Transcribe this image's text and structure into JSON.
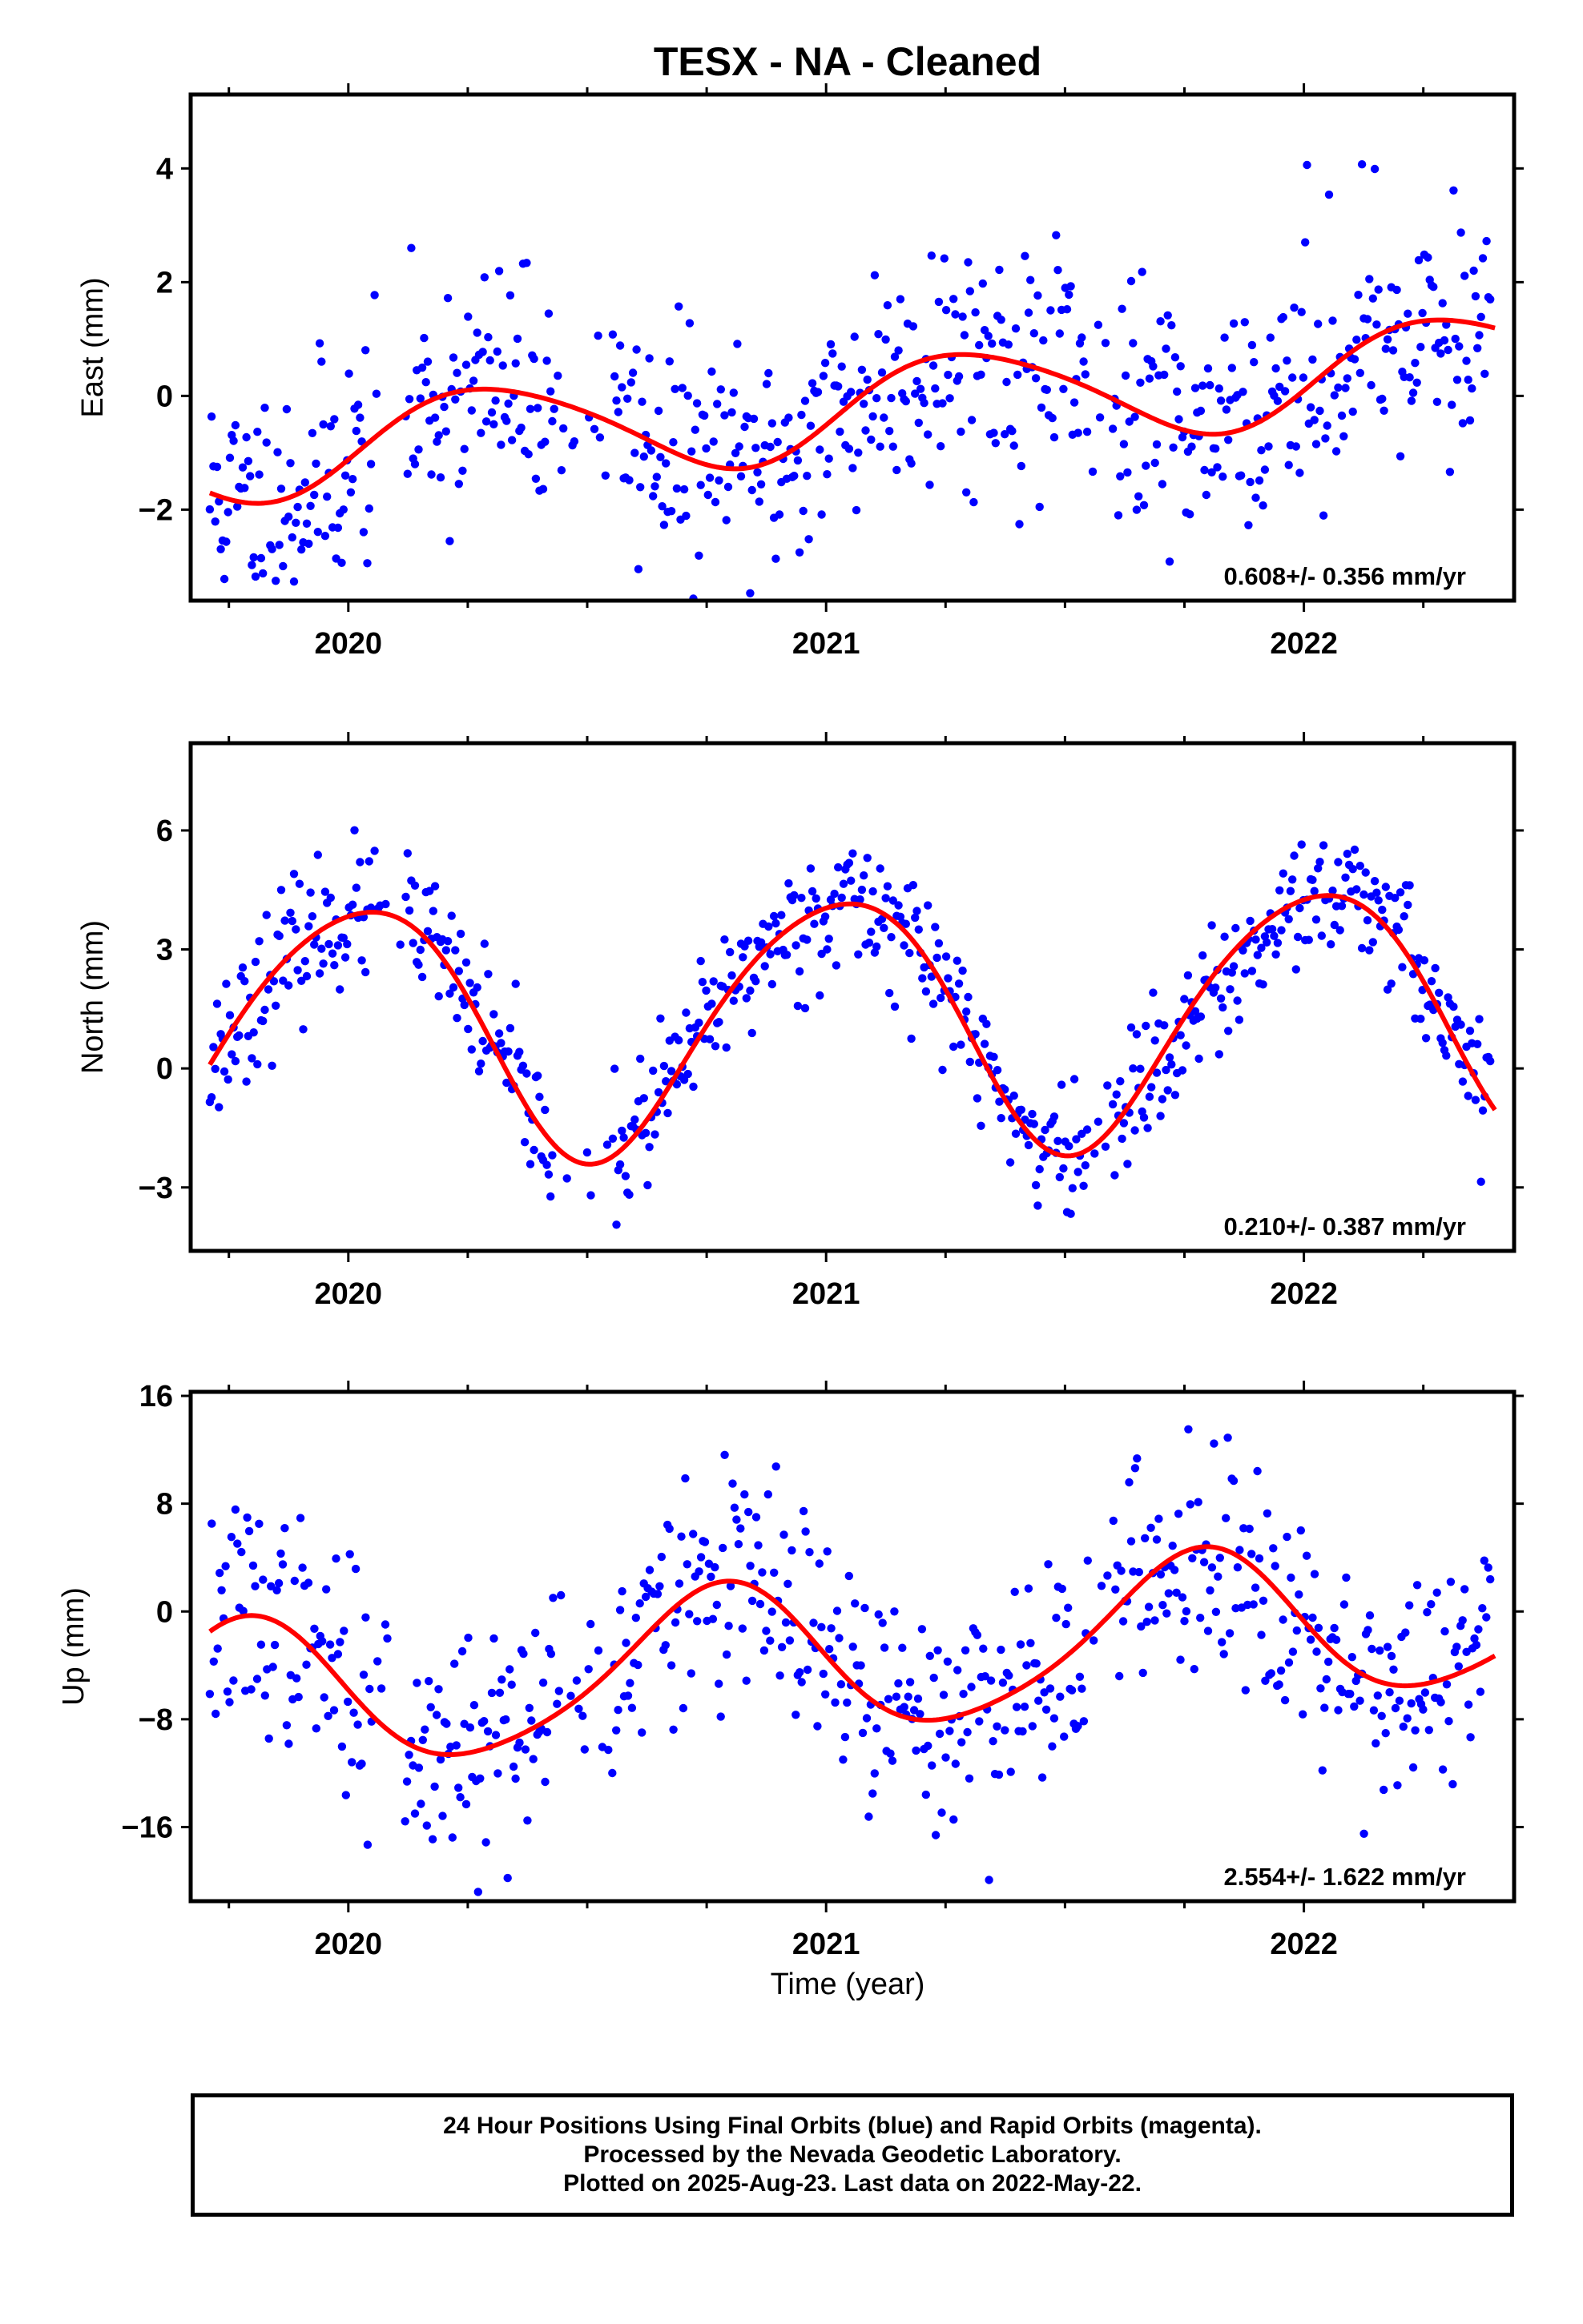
{
  "title": "TESX  - NA - Cleaned",
  "xlabel": "Time (year)",
  "footer": {
    "line1": "24 Hour Positions Using Final Orbits (blue) and Rapid Orbits (magenta).",
    "line2": "Processed by the Nevada Geodetic Laboratory.",
    "line3": "Plotted on 2025-Aug-23. Last data on 2022-May-22."
  },
  "colors": {
    "final_orbits": "#0000ff",
    "model_fit": "#ff0000",
    "axes": "#000000"
  },
  "chart_data": [
    {
      "type": "scatter",
      "ylabel": "East (mm)",
      "annotation": "0.608+/- 0.356 mm/yr",
      "xlim": [
        2019.67,
        2022.44
      ],
      "ylim": [
        -3.6,
        5.3
      ],
      "yticks": [
        -2,
        0,
        2,
        4
      ],
      "xticks": [
        2020,
        2021,
        2022
      ],
      "grid": false,
      "model": {
        "trend_mm_yr": 0.608,
        "offset": -0.25,
        "annual_amp": 0.85,
        "annual_phase": 0.05,
        "semi_amp": 0.1,
        "semi_phase": 0.0
      },
      "series_seed": 11,
      "noise_sd": 1.05,
      "n_points": 700
    },
    {
      "type": "scatter",
      "ylabel": "North (mm)",
      "annotation": "0.210+/- 0.387 mm/yr",
      "xlim": [
        2019.67,
        2022.44
      ],
      "ylim": [
        -4.6,
        8.2
      ],
      "yticks": [
        -3,
        0,
        3,
        6
      ],
      "xticks": [
        2020,
        2021,
        2022
      ],
      "grid": false,
      "model": {
        "trend_mm_yr": 0.21,
        "offset": 1.2,
        "annual_amp": 3.2,
        "annual_phase": 0.77,
        "semi_amp": 0.35,
        "semi_phase": 0.1
      },
      "series_seed": 23,
      "noise_sd": 0.85,
      "n_points": 700
    },
    {
      "type": "scatter",
      "ylabel": "Up (mm)",
      "annotation": "2.554+/- 1.622 mm/yr",
      "xlim": [
        2019.67,
        2022.44
      ],
      "ylim": [
        -21.5,
        16.3
      ],
      "yticks": [
        -16,
        -8,
        0,
        8,
        16
      ],
      "xticks": [
        2020,
        2021,
        2022
      ],
      "grid": false,
      "model": {
        "trend_mm_yr": 2.554,
        "offset": -3.5,
        "annual_amp": 5.6,
        "annual_phase": 0.52,
        "semi_amp": 0.8,
        "semi_phase": 0.2
      },
      "series_seed": 37,
      "noise_sd": 4.2,
      "n_points": 650
    }
  ]
}
